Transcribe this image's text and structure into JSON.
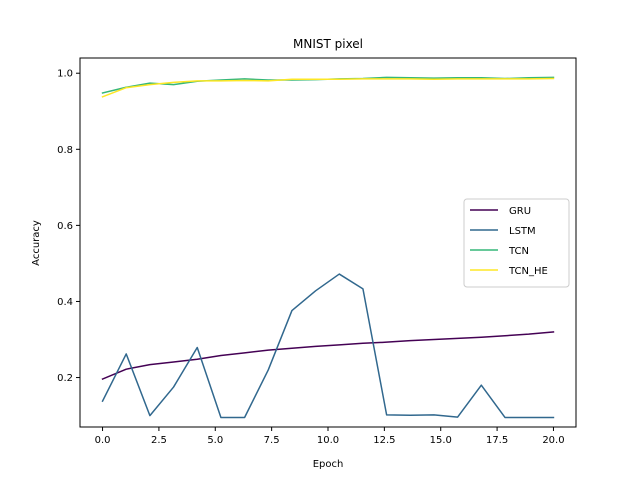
{
  "chart_data": {
    "type": "line",
    "title": "MNIST pixel",
    "xlabel": "Epoch",
    "ylabel": "Accuracy",
    "xlim": [
      -1.0,
      21.0
    ],
    "ylim": [
      0.07,
      1.04
    ],
    "xticks": [
      0.0,
      2.5,
      5.0,
      7.5,
      10.0,
      12.5,
      15.0,
      17.5,
      20.0
    ],
    "xtick_labels": [
      "0.0",
      "2.5",
      "5.0",
      "7.5",
      "10.0",
      "12.5",
      "15.0",
      "17.5",
      "20.0"
    ],
    "yticks": [
      0.2,
      0.4,
      0.6,
      0.8,
      1.0
    ],
    "ytick_labels": [
      "0.2",
      "0.4",
      "0.6",
      "0.8",
      "1.0"
    ],
    "grid": false,
    "legend_position": "center-right",
    "x": [
      0.0,
      1.05,
      2.1,
      3.15,
      4.2,
      5.25,
      6.3,
      7.35,
      8.4,
      9.45,
      10.5,
      11.55,
      12.6,
      13.65,
      14.7,
      15.75,
      16.8,
      17.85,
      18.9,
      20.0
    ],
    "series": [
      {
        "name": "GRU",
        "color": "#440154",
        "values": [
          0.196,
          0.222,
          0.234,
          0.241,
          0.248,
          0.258,
          0.265,
          0.272,
          0.277,
          0.282,
          0.286,
          0.29,
          0.293,
          0.297,
          0.3,
          0.303,
          0.306,
          0.31,
          0.314,
          0.32
        ]
      },
      {
        "name": "LSTM",
        "color": "#31688e",
        "values": [
          0.138,
          0.262,
          0.1,
          0.175,
          0.279,
          0.095,
          0.095,
          0.22,
          0.376,
          0.428,
          0.472,
          0.433,
          0.102,
          0.101,
          0.102,
          0.096,
          0.18,
          0.095,
          0.095,
          0.095
        ]
      },
      {
        "name": "TCN",
        "color": "#35b779",
        "values": [
          0.948,
          0.963,
          0.974,
          0.97,
          0.979,
          0.982,
          0.985,
          0.982,
          0.982,
          0.983,
          0.985,
          0.986,
          0.989,
          0.988,
          0.987,
          0.988,
          0.988,
          0.986,
          0.988,
          0.989
        ]
      },
      {
        "name": "TCN_HE",
        "color": "#fde725",
        "values": [
          0.938,
          0.962,
          0.97,
          0.976,
          0.98,
          0.98,
          0.981,
          0.98,
          0.984,
          0.984,
          0.984,
          0.985,
          0.985,
          0.985,
          0.984,
          0.985,
          0.985,
          0.985,
          0.985,
          0.986
        ]
      }
    ]
  }
}
